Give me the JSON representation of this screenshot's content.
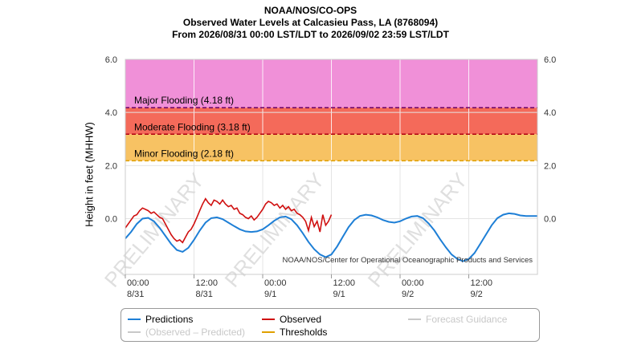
{
  "title": {
    "line1": "NOAA/NOS/CO-OPS",
    "line2": "Observed Water Levels at Calcasieu Pass, LA (8768094)",
    "line3": "From 2026/08/31 00:00 LST/LDT to 2026/09/02 23:59 LST/LDT"
  },
  "colors": {
    "major_band": "#f090d8",
    "moderate_band": "#f46a5a",
    "minor_band": "#f7c263",
    "predictions": "#1e7fd6",
    "observed": "#d01010",
    "threshold_line_major": "#6a0060",
    "threshold_line_moderate": "#b00010",
    "threshold_line_minor": "#e0a000",
    "forecast_guidance": "#c8c8c8",
    "obs_minus_pred": "#c8c8c8"
  },
  "chart_data": {
    "type": "line",
    "ylabel": "Height in feet (MHHW)",
    "ylim": [
      -2.1,
      6.0
    ],
    "yticks": [
      "6.0",
      "4.0",
      "2.0",
      "0.0"
    ],
    "ytick_values": [
      6.0,
      4.0,
      2.0,
      0.0
    ],
    "x_range_hours": [
      0,
      72
    ],
    "xticks": [
      {
        "hour": 0,
        "time": "00:00",
        "date": "8/31"
      },
      {
        "hour": 12,
        "time": "12:00",
        "date": "8/31"
      },
      {
        "hour": 24,
        "time": "00:00",
        "date": "9/1"
      },
      {
        "hour": 36,
        "time": "12:00",
        "date": "9/1"
      },
      {
        "hour": 48,
        "time": "00:00",
        "date": "9/2"
      },
      {
        "hour": 60,
        "time": "12:00",
        "date": "9/2"
      }
    ],
    "thresholds": [
      {
        "label": "Major Flooding (4.18 ft)",
        "value": 4.18
      },
      {
        "label": "Moderate Flooding (3.18 ft)",
        "value": 3.18
      },
      {
        "label": "Minor Flooding (2.18 ft)",
        "value": 2.18
      }
    ],
    "series": [
      {
        "name": "Predictions",
        "x": [
          0,
          1,
          2,
          3,
          4,
          5,
          6,
          7,
          8,
          9,
          10,
          11,
          12,
          13,
          14,
          15,
          16,
          17,
          18,
          19,
          20,
          21,
          22,
          23,
          24,
          25,
          26,
          27,
          28,
          29,
          30,
          31,
          32,
          33,
          34,
          35,
          36,
          37,
          38,
          39,
          40,
          41,
          42,
          43,
          44,
          45,
          46,
          47,
          48,
          49,
          50,
          51,
          52,
          53,
          54,
          55,
          56,
          57,
          58,
          59,
          60,
          61,
          62,
          63,
          64,
          65,
          66,
          67,
          68,
          69,
          70,
          71,
          72
        ],
        "values": [
          -0.75,
          -0.5,
          -0.2,
          0.0,
          0.03,
          -0.1,
          -0.35,
          -0.65,
          -0.95,
          -1.18,
          -1.25,
          -1.1,
          -0.8,
          -0.45,
          -0.15,
          0.02,
          0.05,
          -0.02,
          -0.15,
          -0.28,
          -0.4,
          -0.48,
          -0.5,
          -0.48,
          -0.4,
          -0.25,
          -0.08,
          0.05,
          0.08,
          -0.02,
          -0.25,
          -0.55,
          -0.88,
          -1.15,
          -1.35,
          -1.45,
          -1.35,
          -1.05,
          -0.68,
          -0.32,
          -0.05,
          0.1,
          0.15,
          0.12,
          0.05,
          -0.05,
          -0.12,
          -0.15,
          -0.1,
          0.0,
          0.08,
          0.1,
          0.02,
          -0.18,
          -0.45,
          -0.78,
          -1.08,
          -1.35,
          -1.52,
          -1.6,
          -1.52,
          -1.3,
          -0.95,
          -0.6,
          -0.25,
          0.02,
          0.15,
          0.2,
          0.18,
          0.12,
          0.1,
          0.1,
          0.1
        ]
      },
      {
        "name": "Observed",
        "x": [
          0,
          0.5,
          1,
          1.5,
          2,
          2.5,
          3,
          3.5,
          4,
          4.5,
          5,
          5.5,
          6,
          6.5,
          7,
          7.5,
          8,
          8.5,
          9,
          9.5,
          10,
          10.5,
          11,
          11.5,
          12,
          12.5,
          13,
          13.5,
          14,
          14.5,
          15,
          15.5,
          16,
          16.5,
          17,
          17.5,
          18,
          18.5,
          19,
          19.5,
          20,
          20.5,
          21,
          21.5,
          22,
          22.5,
          23,
          23.5,
          24,
          24.5,
          25,
          25.5,
          26,
          26.5,
          27,
          27.5,
          28,
          28.5,
          29,
          29.5,
          30,
          30.5,
          31,
          31.5,
          32,
          32.5,
          33,
          33.5,
          34,
          34.5,
          35,
          35.5,
          36
        ],
        "values": [
          -0.35,
          -0.2,
          -0.05,
          0.1,
          0.15,
          0.3,
          0.4,
          0.35,
          0.3,
          0.2,
          0.25,
          0.15,
          0.05,
          0.0,
          -0.2,
          -0.4,
          -0.6,
          -0.75,
          -0.85,
          -0.8,
          -0.9,
          -0.7,
          -0.5,
          -0.4,
          -0.2,
          0.05,
          0.3,
          0.55,
          0.75,
          0.6,
          0.5,
          0.7,
          0.65,
          0.55,
          0.7,
          0.55,
          0.45,
          0.5,
          0.35,
          0.4,
          0.2,
          0.15,
          0.05,
          0.0,
          0.1,
          -0.05,
          0.05,
          0.2,
          0.35,
          0.55,
          0.65,
          0.6,
          0.5,
          0.55,
          0.4,
          0.5,
          0.35,
          0.45,
          0.3,
          0.35,
          0.2,
          0.15,
          0.05,
          -0.1,
          -0.45,
          0.05,
          -0.3,
          -0.1,
          -0.5,
          0.15,
          -0.25,
          -0.1,
          0.15
        ]
      }
    ],
    "watermark": "PRELIMINARY",
    "credit": "NOAA/NOS/Center for Operational Oceanographic Products and Services"
  },
  "legend": {
    "predictions": "Predictions",
    "observed": "Observed",
    "forecast_guidance": "Forecast Guidance",
    "obs_minus_pred": "(Observed – Predicted)",
    "thresholds": "Thresholds"
  }
}
